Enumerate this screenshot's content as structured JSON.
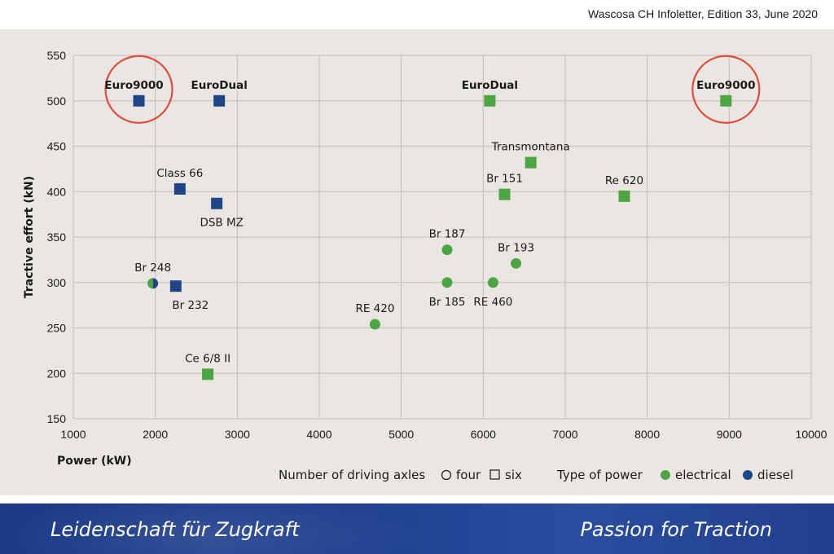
{
  "header": {
    "text": "Wascosa CH Infoletter, Edition 33, June 2020"
  },
  "footer": {
    "left": "Leidenschaft für Zugkraft",
    "right": "Passion for Traction"
  },
  "colors": {
    "electrical": "#4da541",
    "diesel": "#1f4589",
    "highlight_ring": "#e04b3a",
    "grid": "#c9c5bf",
    "panel": "#eae7e3"
  },
  "chart_data": {
    "type": "scatter",
    "title": "",
    "xlabel": "Power (kW)",
    "ylabel": "Tractive effort (kN)",
    "xlim": [
      1000,
      10000
    ],
    "ylim": [
      150,
      550
    ],
    "xticks": [
      1000,
      2000,
      3000,
      4000,
      5000,
      6000,
      7000,
      8000,
      9000,
      10000
    ],
    "yticks": [
      150,
      200,
      250,
      300,
      350,
      400,
      450,
      500,
      550
    ],
    "grid": true,
    "legend": {
      "axles_title": "Number of driving axles",
      "axles_items": [
        {
          "label": "four",
          "marker": "circle"
        },
        {
          "label": "six",
          "marker": "square"
        }
      ],
      "power_title": "Type of power",
      "power_items": [
        {
          "label": "electrical",
          "power": "electrical"
        },
        {
          "label": "diesel",
          "power": "diesel"
        }
      ]
    },
    "points": [
      {
        "name": "Euro9000",
        "x": 1800,
        "y": 500,
        "marker": "square",
        "power": "diesel",
        "label_pos": "above-left",
        "bold": true,
        "highlight": true
      },
      {
        "name": "EuroDual",
        "x": 2780,
        "y": 500,
        "marker": "square",
        "power": "diesel",
        "label_pos": "above",
        "bold": true,
        "highlight": false
      },
      {
        "name": "Class 66",
        "x": 2300,
        "y": 403,
        "marker": "square",
        "power": "diesel",
        "label_pos": "above",
        "bold": false,
        "highlight": false
      },
      {
        "name": "DSB MZ",
        "x": 2750,
        "y": 387,
        "marker": "square",
        "power": "diesel",
        "label_pos": "below",
        "bold": false,
        "highlight": false
      },
      {
        "name": "Br 248",
        "x": 1970,
        "y": 299,
        "marker": "circle",
        "power": "hybrid",
        "label_pos": "above",
        "bold": false,
        "highlight": false
      },
      {
        "name": "Br 232",
        "x": 2250,
        "y": 296,
        "marker": "square",
        "power": "diesel",
        "label_pos": "below",
        "bold": false,
        "highlight": false
      },
      {
        "name": "Ce 6/8 II",
        "x": 2640,
        "y": 199,
        "marker": "square",
        "power": "electrical",
        "label_pos": "above",
        "bold": false,
        "highlight": false
      },
      {
        "name": "RE 420",
        "x": 4680,
        "y": 254,
        "marker": "circle",
        "power": "electrical",
        "label_pos": "above",
        "bold": false,
        "highlight": false
      },
      {
        "name": "Br 187",
        "x": 5560,
        "y": 336,
        "marker": "circle",
        "power": "electrical",
        "label_pos": "above",
        "bold": false,
        "highlight": false
      },
      {
        "name": "Br 185",
        "x": 5560,
        "y": 300,
        "marker": "circle",
        "power": "electrical",
        "label_pos": "below",
        "bold": false,
        "highlight": false
      },
      {
        "name": "RE 460",
        "x": 6120,
        "y": 300,
        "marker": "circle",
        "power": "electrical",
        "label_pos": "below",
        "bold": false,
        "highlight": false
      },
      {
        "name": "Br 193",
        "x": 6400,
        "y": 321,
        "marker": "circle",
        "power": "electrical",
        "label_pos": "above",
        "bold": false,
        "highlight": false
      },
      {
        "name": "Br 151",
        "x": 6260,
        "y": 397,
        "marker": "square",
        "power": "electrical",
        "label_pos": "above",
        "bold": false,
        "highlight": false
      },
      {
        "name": "Transmontana",
        "x": 6580,
        "y": 432,
        "marker": "square",
        "power": "electrical",
        "label_pos": "above",
        "bold": false,
        "highlight": false
      },
      {
        "name": "EuroDual",
        "x": 6080,
        "y": 500,
        "marker": "square",
        "power": "electrical",
        "label_pos": "above",
        "bold": true,
        "highlight": false
      },
      {
        "name": "Re 620",
        "x": 7720,
        "y": 395,
        "marker": "square",
        "power": "electrical",
        "label_pos": "above",
        "bold": false,
        "highlight": false
      },
      {
        "name": "Euro9000",
        "x": 8960,
        "y": 500,
        "marker": "square",
        "power": "electrical",
        "label_pos": "above",
        "bold": true,
        "highlight": true
      }
    ]
  }
}
